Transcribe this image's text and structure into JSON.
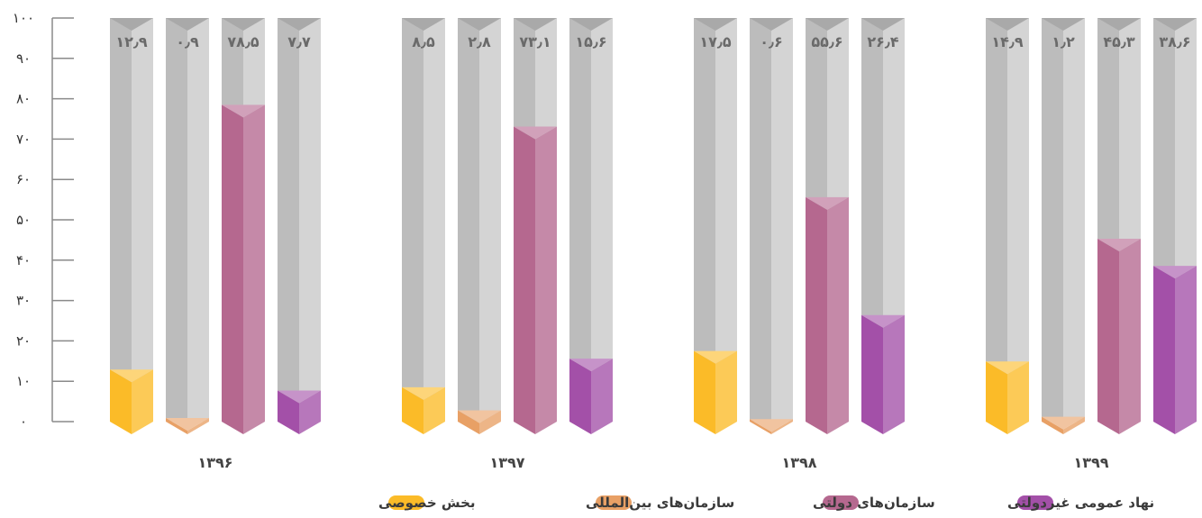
{
  "chart_data": {
    "type": "bar",
    "categories": [
      "۱۳۹۶",
      "۱۳۹۷",
      "۱۳۹۸",
      "۱۳۹۹"
    ],
    "ylim": [
      0,
      100
    ],
    "y_ticks": [
      "۰",
      "۱۰",
      "۲۰",
      "۳۰",
      "۴۰",
      "۵۰",
      "۶۰",
      "۷۰",
      "۸۰",
      "۹۰",
      "۱۰۰"
    ],
    "grid": false,
    "legend_position": "bottom-center",
    "series": [
      {
        "name": "بخش خصوصی",
        "color": "#fbbb28",
        "values": [
          12.9,
          8.5,
          17.5,
          14.9
        ],
        "labels": [
          "۱۲٫۹",
          "۸٫۵",
          "۱۷٫۵",
          "۱۴٫۹"
        ]
      },
      {
        "name": "سازمان‌های بین‌المللی",
        "color": "#e8a065",
        "values": [
          0.9,
          2.8,
          0.6,
          1.2
        ],
        "labels": [
          "۰٫۹",
          "۲٫۸",
          "۰٫۶",
          "۱٫۲"
        ]
      },
      {
        "name": "سازمان‌های دولتی",
        "color": "#b5688f",
        "values": [
          78.5,
          73.1,
          55.6,
          45.3
        ],
        "labels": [
          "۷۸٫۵",
          "۷۳٫۱",
          "۵۵٫۶",
          "۴۵٫۳"
        ]
      },
      {
        "name": "نهاد عمومی غیردولتی",
        "color": "#a350a8",
        "values": [
          7.7,
          15.6,
          26.4,
          38.6
        ],
        "labels": [
          "۷٫۷",
          "۱۵٫۶",
          "۲۶٫۴",
          "۳۸٫۶"
        ]
      }
    ]
  }
}
